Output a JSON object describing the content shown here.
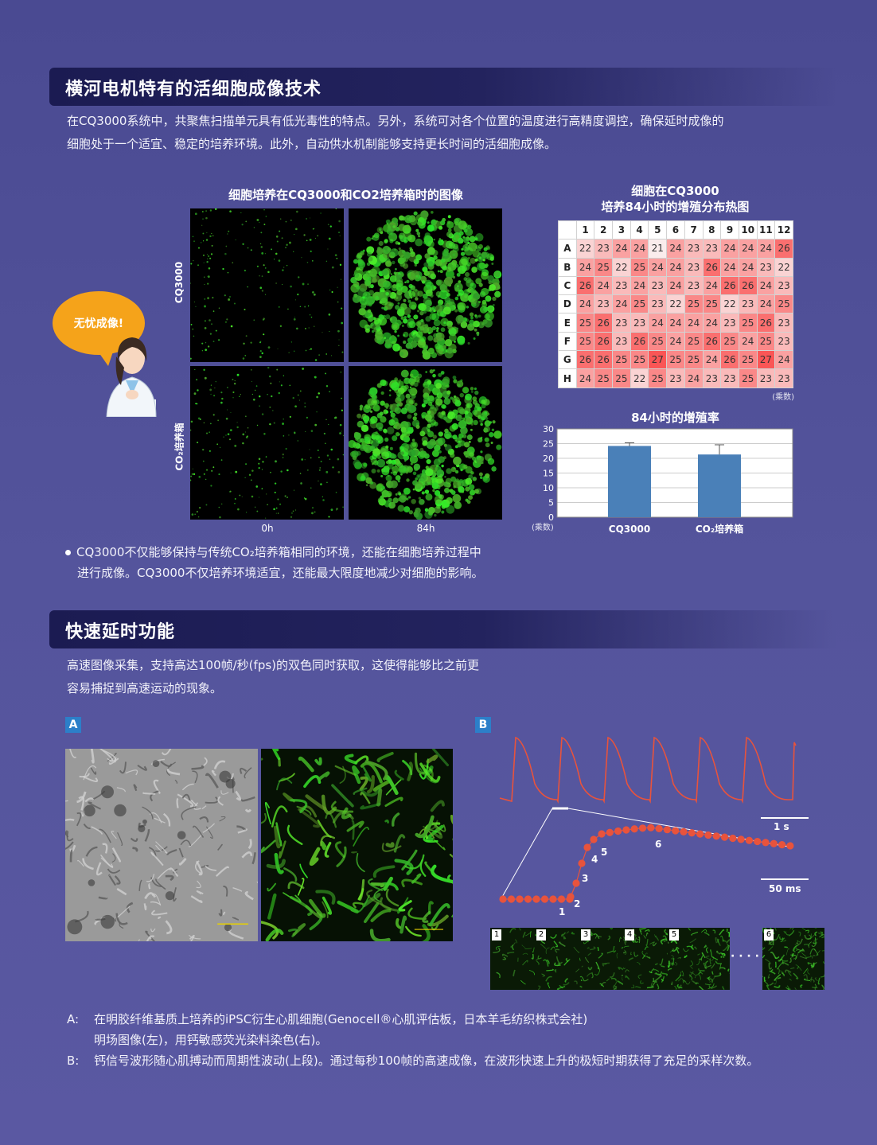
{
  "section1": {
    "title": "横河电机特有的活细胞成像技术",
    "para_line1": "在CQ3000系统中，共聚焦扫描单元具有低光毒性的特点。另外，系统可对各个位置的温度进行高精度调控，确保延时成像的",
    "para_line2": "细胞处于一个适宜、稳定的培养环境。此外，自动供水机制能够支持更长时间的活细胞成像。",
    "image_fig": {
      "title": "细胞培养在CQ3000和CO2培养箱时的图像",
      "row_cq": "CQ3000",
      "row_co2": "CO₂培养箱",
      "col_0h": "0h",
      "col_84h": "84h"
    },
    "bubble": "无忧成像!",
    "heatmap": {
      "title_line1": "细胞在CQ3000",
      "title_line2": "培养84小时的增殖分布热图",
      "unit": "(乘数)",
      "cols": [
        "1",
        "2",
        "3",
        "4",
        "5",
        "6",
        "7",
        "8",
        "9",
        "10",
        "11",
        "12"
      ],
      "rows": [
        "A",
        "B",
        "C",
        "D",
        "E",
        "F",
        "G",
        "H"
      ],
      "values": [
        [
          22,
          23,
          24,
          24,
          21,
          24,
          23,
          23,
          24,
          24,
          24,
          26
        ],
        [
          24,
          25,
          22,
          25,
          24,
          24,
          23,
          26,
          24,
          24,
          23,
          22
        ],
        [
          26,
          24,
          23,
          24,
          23,
          24,
          23,
          24,
          26,
          26,
          24,
          23
        ],
        [
          24,
          23,
          24,
          25,
          23,
          22,
          25,
          25,
          22,
          23,
          24,
          25
        ],
        [
          25,
          26,
          23,
          23,
          24,
          24,
          24,
          24,
          23,
          25,
          26,
          23
        ],
        [
          25,
          26,
          23,
          26,
          25,
          24,
          25,
          26,
          25,
          24,
          25,
          23
        ],
        [
          26,
          26,
          25,
          25,
          27,
          25,
          25,
          24,
          26,
          25,
          27,
          24
        ],
        [
          24,
          25,
          25,
          22,
          25,
          23,
          24,
          23,
          23,
          25,
          23,
          23
        ]
      ]
    },
    "bullet_line1": "CQ3000不仅能够保持与传统CO₂培养箱相同的环境，还能在细胞培养过程中",
    "bullet_line2": "进行成像。CQ3000不仅培养环境适宜，还能最大限度地减少对细胞的影响。"
  },
  "chart_data": {
    "type": "bar",
    "title": "84小时的增殖率",
    "categories": [
      "CQ3000",
      "CO₂培养箱"
    ],
    "values": [
      24.2,
      21.3
    ],
    "error": [
      1.1,
      3.3
    ],
    "ylabel": "(乘数)",
    "ylim": [
      0,
      30
    ],
    "yticks": [
      "0",
      "5",
      "10",
      "15",
      "20",
      "25",
      "30"
    ],
    "grid": true,
    "color": "#4a80b8"
  },
  "section2": {
    "title": "快速延时功能",
    "para_line1": "高速图像采集，支持高达100帧/秒(fps)的双色同时获取，这使得能够比之前更",
    "para_line2": "容易捕捉到高速运动的现象。",
    "tag_a": "A",
    "tag_b": "B",
    "scale_1s": "1 s",
    "scale_50ms": "50 ms",
    "point_labels": [
      "1",
      "2",
      "3",
      "4",
      "5",
      "6"
    ],
    "thumb_labels": [
      "1",
      "2",
      "3",
      "4",
      "5",
      "6"
    ],
    "ellipsis": "· · · ·",
    "cap_a_key": "A:",
    "cap_a_line1": "在明胶纤维基质上培养的iPSC衍生心肌细胞(Genocell®心肌评估板，日本羊毛纺织株式会社)",
    "cap_a_line2": "明场图像(左)，用钙敏感荧光染料染色(右)。",
    "cap_b_key": "B:",
    "cap_b_line1": "钙信号波形随心肌搏动而周期性波动(上段)。通过每秒100帧的高速成像，在波形快速上升的极短时期获得了充足的采样次数。"
  },
  "colors": {
    "background": "#50509a",
    "band": "#1f1f58",
    "trace": "#e8533c",
    "bar": "#4a80b8",
    "tag": "#2c7fc9"
  }
}
